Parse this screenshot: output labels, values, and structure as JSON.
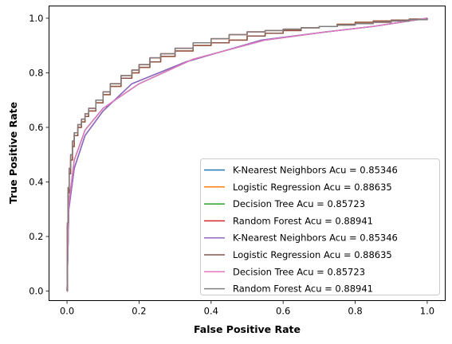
{
  "chart_data": {
    "type": "line",
    "title": "",
    "xlabel": "False Positive Rate",
    "ylabel": "True Positive Rate",
    "xlim": [
      -0.05,
      1.05
    ],
    "ylim": [
      -0.035,
      1.045
    ],
    "xticks": [
      0.0,
      0.2,
      0.4,
      0.6,
      0.8,
      1.0
    ],
    "xtick_labels": [
      "0.0",
      "0.2",
      "0.4",
      "0.6",
      "0.8",
      "1.0"
    ],
    "yticks": [
      0.0,
      0.2,
      0.4,
      0.6,
      0.8,
      1.0
    ],
    "ytick_labels": [
      "0.0",
      "0.2",
      "0.4",
      "0.6",
      "0.8",
      "1.0"
    ],
    "grid": false,
    "legend_position": "lower-right",
    "series": [
      {
        "name": "K-Nearest Neighbors Acu = 0.85346",
        "color": "#1f77b4",
        "step": false,
        "x": [
          0,
          0.005,
          0.02,
          0.05,
          0.1,
          0.18,
          0.33,
          0.54,
          0.72,
          0.85,
          1.0
        ],
        "y": [
          0,
          0.3,
          0.45,
          0.57,
          0.66,
          0.76,
          0.84,
          0.92,
          0.95,
          0.97,
          1.0
        ]
      },
      {
        "name": "Logistic Regression Acu = 0.88635",
        "color": "#ff7f0e",
        "step": true,
        "x": [
          0,
          0.001,
          0.003,
          0.006,
          0.01,
          0.015,
          0.02,
          0.03,
          0.04,
          0.05,
          0.06,
          0.08,
          0.1,
          0.12,
          0.15,
          0.18,
          0.2,
          0.23,
          0.26,
          0.3,
          0.35,
          0.4,
          0.45,
          0.5,
          0.55,
          0.6,
          0.65,
          0.7,
          0.75,
          0.8,
          0.85,
          0.9,
          0.95,
          1.0
        ],
        "y": [
          0,
          0.24,
          0.36,
          0.43,
          0.48,
          0.53,
          0.57,
          0.6,
          0.62,
          0.64,
          0.66,
          0.69,
          0.72,
          0.75,
          0.78,
          0.8,
          0.82,
          0.84,
          0.86,
          0.88,
          0.9,
          0.91,
          0.92,
          0.935,
          0.945,
          0.955,
          0.965,
          0.97,
          0.978,
          0.985,
          0.99,
          0.993,
          0.997,
          1.0
        ]
      },
      {
        "name": "Decision Tree Acu = 0.85723",
        "color": "#2ca02c",
        "step": false,
        "x": [
          0,
          0.005,
          0.02,
          0.05,
          0.1,
          0.2,
          0.35,
          0.55,
          0.72,
          0.85,
          1.0
        ],
        "y": [
          0,
          0.32,
          0.48,
          0.59,
          0.67,
          0.76,
          0.85,
          0.92,
          0.95,
          0.97,
          1.0
        ]
      },
      {
        "name": "Random Forest Acu = 0.88941",
        "color": "#d62728",
        "step": true,
        "x": [
          0,
          0.001,
          0.003,
          0.006,
          0.01,
          0.015,
          0.02,
          0.03,
          0.04,
          0.05,
          0.06,
          0.08,
          0.1,
          0.12,
          0.15,
          0.18,
          0.2,
          0.23,
          0.26,
          0.3,
          0.35,
          0.4,
          0.45,
          0.5,
          0.55,
          0.6,
          0.65,
          0.7,
          0.75,
          0.8,
          0.85,
          0.9,
          0.95,
          1.0
        ],
        "y": [
          0,
          0.25,
          0.38,
          0.45,
          0.5,
          0.55,
          0.58,
          0.61,
          0.63,
          0.65,
          0.67,
          0.7,
          0.73,
          0.76,
          0.79,
          0.81,
          0.83,
          0.855,
          0.87,
          0.89,
          0.91,
          0.925,
          0.94,
          0.95,
          0.955,
          0.96,
          0.965,
          0.97,
          0.975,
          0.98,
          0.985,
          0.99,
          0.995,
          1.0
        ]
      },
      {
        "name": "K-Nearest Neighbors Acu = 0.85346",
        "color": "#9467bd",
        "step": false,
        "x": [
          0,
          0.005,
          0.02,
          0.05,
          0.1,
          0.18,
          0.33,
          0.54,
          0.72,
          0.85,
          1.0
        ],
        "y": [
          0,
          0.3,
          0.45,
          0.57,
          0.66,
          0.76,
          0.84,
          0.92,
          0.95,
          0.97,
          1.0
        ]
      },
      {
        "name": "Logistic Regression Acu = 0.88635",
        "color": "#8c564b",
        "step": true,
        "x": [
          0,
          0.001,
          0.003,
          0.006,
          0.01,
          0.015,
          0.02,
          0.03,
          0.04,
          0.05,
          0.06,
          0.08,
          0.1,
          0.12,
          0.15,
          0.18,
          0.2,
          0.23,
          0.26,
          0.3,
          0.35,
          0.4,
          0.45,
          0.5,
          0.55,
          0.6,
          0.65,
          0.7,
          0.75,
          0.8,
          0.85,
          0.9,
          0.95,
          1.0
        ],
        "y": [
          0,
          0.24,
          0.36,
          0.43,
          0.48,
          0.53,
          0.57,
          0.6,
          0.62,
          0.64,
          0.66,
          0.69,
          0.72,
          0.75,
          0.78,
          0.8,
          0.82,
          0.84,
          0.86,
          0.88,
          0.9,
          0.91,
          0.92,
          0.935,
          0.945,
          0.955,
          0.965,
          0.97,
          0.978,
          0.985,
          0.99,
          0.993,
          0.997,
          1.0
        ]
      },
      {
        "name": "Decision Tree Acu = 0.85723",
        "color": "#e377c2",
        "step": false,
        "x": [
          0,
          0.005,
          0.02,
          0.05,
          0.1,
          0.2,
          0.35,
          0.55,
          0.72,
          0.85,
          1.0
        ],
        "y": [
          0,
          0.32,
          0.48,
          0.59,
          0.67,
          0.76,
          0.85,
          0.92,
          0.95,
          0.97,
          1.0
        ]
      },
      {
        "name": "Random Forest Acu = 0.88941",
        "color": "#7f7f7f",
        "step": true,
        "x": [
          0,
          0.001,
          0.003,
          0.006,
          0.01,
          0.015,
          0.02,
          0.03,
          0.04,
          0.05,
          0.06,
          0.08,
          0.1,
          0.12,
          0.15,
          0.18,
          0.2,
          0.23,
          0.26,
          0.3,
          0.35,
          0.4,
          0.45,
          0.5,
          0.55,
          0.6,
          0.65,
          0.7,
          0.75,
          0.8,
          0.85,
          0.9,
          0.95,
          1.0
        ],
        "y": [
          0,
          0.25,
          0.38,
          0.45,
          0.5,
          0.55,
          0.58,
          0.61,
          0.63,
          0.65,
          0.67,
          0.7,
          0.73,
          0.76,
          0.79,
          0.81,
          0.83,
          0.855,
          0.87,
          0.89,
          0.91,
          0.925,
          0.94,
          0.95,
          0.955,
          0.96,
          0.965,
          0.97,
          0.975,
          0.98,
          0.985,
          0.99,
          0.995,
          1.0
        ]
      }
    ]
  }
}
